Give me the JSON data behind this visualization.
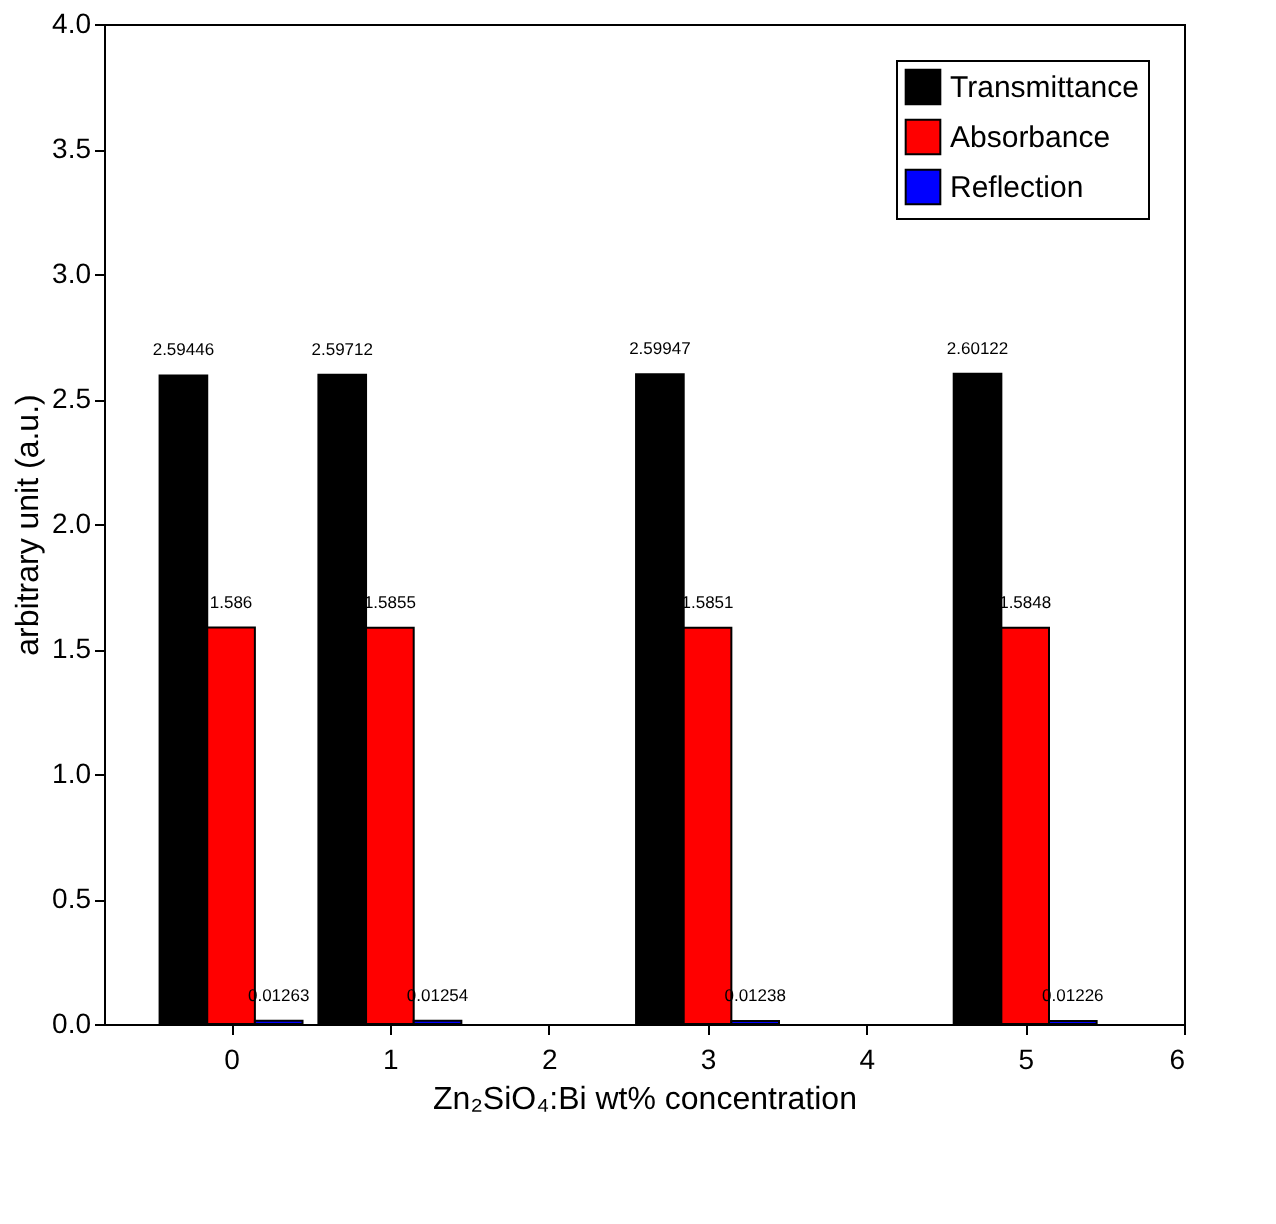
{
  "chart_data": {
    "type": "bar",
    "xlabel": "Zn₂SiO₄:Bi wt% concentration",
    "ylabel": "arbitrary unit (a.u.)",
    "x": [
      0,
      1,
      3,
      5
    ],
    "series": [
      {
        "name": "Transmittance",
        "color": "#000000",
        "values": [
          2.59446,
          2.59712,
          2.59947,
          2.60122
        ]
      },
      {
        "name": "Absorbance",
        "color": "#ff0000",
        "values": [
          1.586,
          1.5855,
          1.5851,
          1.5848
        ]
      },
      {
        "name": "Reflection",
        "color": "#0000ff",
        "values": [
          0.01263,
          0.01254,
          0.01238,
          0.01226
        ]
      }
    ],
    "xlim": [
      -0.8,
      6
    ],
    "xticks": [
      0,
      1,
      2,
      3,
      4,
      5,
      6
    ],
    "ylim": [
      0,
      4
    ],
    "yticks": [
      {
        "value": 0,
        "label": "0.0"
      },
      0.5,
      {
        "value": 1,
        "label": "1.0"
      },
      1.5,
      {
        "value": 2,
        "label": "2.0"
      },
      2.5,
      {
        "value": 3,
        "label": "3.0"
      },
      3.5,
      {
        "value": 4,
        "label": "4.0"
      }
    ],
    "data_labels": true,
    "legend": "top right",
    "grid": false
  }
}
